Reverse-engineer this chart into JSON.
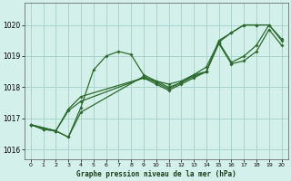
{
  "title": "Graphe pression niveau de la mer (hPa)",
  "background_color": "#d4f0ea",
  "grid_color": "#aad4cc",
  "line_color": "#2d6a2d",
  "xlim": [
    -0.5,
    20.5
  ],
  "ylim": [
    1015.7,
    1020.7
  ],
  "yticks": [
    1016,
    1017,
    1018,
    1019,
    1020
  ],
  "xticks": [
    0,
    1,
    2,
    3,
    4,
    5,
    6,
    7,
    8,
    9,
    10,
    11,
    12,
    13,
    14,
    15,
    16,
    17,
    18,
    19,
    20
  ],
  "series": [
    {
      "x": [
        0,
        1,
        2,
        3,
        4,
        5,
        6,
        7,
        8,
        9,
        10,
        11,
        12,
        13,
        14,
        15,
        16,
        17,
        18,
        19,
        20
      ],
      "y": [
        1016.8,
        1016.65,
        1016.6,
        1016.4,
        1017.35,
        1018.55,
        1019.0,
        1019.15,
        1019.05,
        1018.4,
        1018.2,
        1018.0,
        1018.15,
        1018.4,
        1018.65,
        1019.45,
        1019.75,
        1020.0,
        1020.0,
        1020.0,
        1019.55
      ]
    },
    {
      "x": [
        0,
        1,
        2,
        3,
        4,
        9,
        10,
        11,
        12,
        13,
        14,
        15,
        16,
        17,
        18
      ],
      "y": [
        1016.8,
        1016.65,
        1016.6,
        1017.3,
        1017.7,
        1018.3,
        1018.2,
        1018.1,
        1018.2,
        1018.4,
        1018.5,
        1019.5,
        1019.75,
        1020.0,
        1020.0
      ]
    },
    {
      "x": [
        0,
        2,
        3,
        4,
        9,
        10,
        11,
        12,
        13,
        14,
        15,
        16,
        17,
        18,
        19,
        20
      ],
      "y": [
        1016.8,
        1016.6,
        1016.4,
        1017.2,
        1018.35,
        1018.15,
        1017.95,
        1018.15,
        1018.35,
        1018.5,
        1019.45,
        1018.8,
        1019.0,
        1019.35,
        1020.0,
        1019.5
      ]
    },
    {
      "x": [
        0,
        2,
        3,
        4,
        9,
        10,
        11,
        12,
        13,
        14,
        15,
        16,
        17,
        18,
        19,
        20
      ],
      "y": [
        1016.8,
        1016.6,
        1017.25,
        1017.55,
        1018.3,
        1018.1,
        1017.9,
        1018.1,
        1018.3,
        1018.5,
        1019.4,
        1018.75,
        1018.85,
        1019.15,
        1019.85,
        1019.35
      ]
    }
  ]
}
